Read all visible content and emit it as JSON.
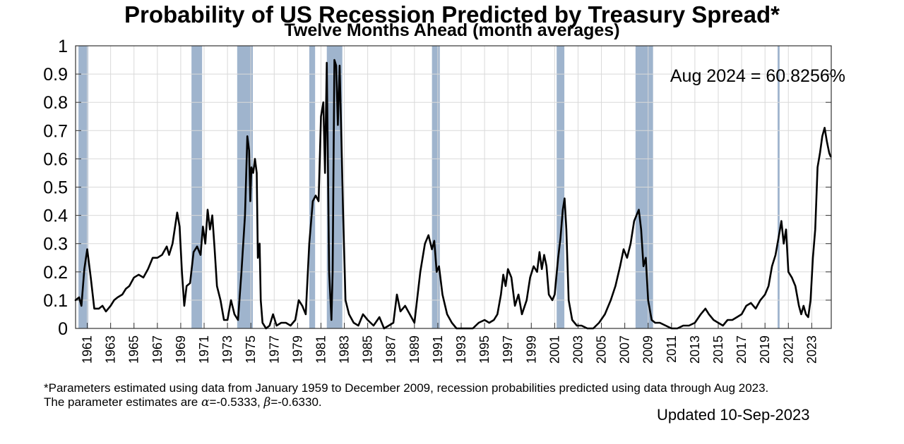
{
  "header": {
    "title": "Probability of US Recession Predicted by Treasury Spread*",
    "subtitle": "Twelve Months Ahead (month averages)"
  },
  "footnote": {
    "line1": "*Parameters estimated using data from January 1959 to December 2009, recession probabilities predicted using data through Aug 2023.",
    "line2_prefix": "The parameter estimates are ",
    "alpha_symbol": "α",
    "alpha_value": "=-0.5333, ",
    "beta_symbol": "β",
    "beta_value": "=-0.6330."
  },
  "updated": "Updated 10-Sep-2023",
  "colors": {
    "recession_band": "#9fb4cd",
    "line": "#000000",
    "grid": "#d9d9d9"
  },
  "chart_data": {
    "type": "line",
    "title": "Probability of US Recession Predicted by Treasury Spread*",
    "subtitle": "Twelve Months Ahead (month averages)",
    "annotation": "Aug 2024 = 60.8256%",
    "xlim": [
      1960.0,
      2024.67
    ],
    "ylim": [
      0,
      1
    ],
    "grid": true,
    "x_ticks": [
      1961,
      1963,
      1965,
      1967,
      1969,
      1971,
      1973,
      1975,
      1977,
      1979,
      1981,
      1983,
      1985,
      1987,
      1989,
      1991,
      1993,
      1995,
      1997,
      1999,
      2001,
      2003,
      2005,
      2007,
      2009,
      2011,
      2013,
      2015,
      2017,
      2019,
      2021,
      2023
    ],
    "y_ticks": [
      0,
      0.1,
      0.2,
      0.3,
      0.4,
      0.5,
      0.6,
      0.7,
      0.8,
      0.9,
      1
    ],
    "y_tick_labels": [
      "0",
      "0.1",
      "0.2",
      "0.3",
      "0.4",
      "0.5",
      "0.6",
      "0.7",
      "0.8",
      "0.9",
      "1"
    ],
    "recessions": [
      [
        1960.25,
        1961.08
      ],
      [
        1969.92,
        1970.83
      ],
      [
        1973.83,
        1975.17
      ],
      [
        1980.0,
        1980.5
      ],
      [
        1981.5,
        1982.83
      ],
      [
        1990.5,
        1991.17
      ],
      [
        2001.17,
        2001.83
      ],
      [
        2007.92,
        2009.42
      ],
      [
        2020.08,
        2020.25
      ]
    ],
    "series": [
      {
        "points": [
          [
            1960.0,
            0.1
          ],
          [
            1960.3,
            0.11
          ],
          [
            1960.5,
            0.08
          ],
          [
            1960.75,
            0.21
          ],
          [
            1961.0,
            0.28
          ],
          [
            1961.3,
            0.18
          ],
          [
            1961.6,
            0.07
          ],
          [
            1962.0,
            0.07
          ],
          [
            1962.3,
            0.08
          ],
          [
            1962.6,
            0.06
          ],
          [
            1963.0,
            0.08
          ],
          [
            1963.3,
            0.1
          ],
          [
            1963.6,
            0.11
          ],
          [
            1964.0,
            0.12
          ],
          [
            1964.3,
            0.14
          ],
          [
            1964.6,
            0.15
          ],
          [
            1965.0,
            0.18
          ],
          [
            1965.4,
            0.19
          ],
          [
            1965.8,
            0.18
          ],
          [
            1966.2,
            0.21
          ],
          [
            1966.6,
            0.25
          ],
          [
            1967.0,
            0.25
          ],
          [
            1967.4,
            0.26
          ],
          [
            1967.8,
            0.29
          ],
          [
            1968.0,
            0.26
          ],
          [
            1968.3,
            0.3
          ],
          [
            1968.7,
            0.41
          ],
          [
            1968.9,
            0.36
          ],
          [
            1969.1,
            0.2
          ],
          [
            1969.3,
            0.08
          ],
          [
            1969.5,
            0.15
          ],
          [
            1969.8,
            0.16
          ],
          [
            1970.1,
            0.27
          ],
          [
            1970.4,
            0.29
          ],
          [
            1970.7,
            0.26
          ],
          [
            1970.9,
            0.36
          ],
          [
            1971.1,
            0.3
          ],
          [
            1971.3,
            0.42
          ],
          [
            1971.5,
            0.35
          ],
          [
            1971.7,
            0.4
          ],
          [
            1971.9,
            0.28
          ],
          [
            1972.1,
            0.15
          ],
          [
            1972.4,
            0.1
          ],
          [
            1972.7,
            0.03
          ],
          [
            1973.0,
            0.03
          ],
          [
            1973.3,
            0.1
          ],
          [
            1973.6,
            0.05
          ],
          [
            1973.9,
            0.03
          ],
          [
            1974.2,
            0.2
          ],
          [
            1974.5,
            0.4
          ],
          [
            1974.7,
            0.68
          ],
          [
            1974.85,
            0.63
          ],
          [
            1974.95,
            0.45
          ],
          [
            1975.05,
            0.57
          ],
          [
            1975.2,
            0.55
          ],
          [
            1975.35,
            0.6
          ],
          [
            1975.5,
            0.55
          ],
          [
            1975.6,
            0.25
          ],
          [
            1975.75,
            0.3
          ],
          [
            1975.85,
            0.1
          ],
          [
            1976.0,
            0.02
          ],
          [
            1976.3,
            0.0
          ],
          [
            1976.6,
            0.01
          ],
          [
            1976.9,
            0.05
          ],
          [
            1977.2,
            0.01
          ],
          [
            1977.6,
            0.02
          ],
          [
            1978.0,
            0.02
          ],
          [
            1978.4,
            0.01
          ],
          [
            1978.8,
            0.03
          ],
          [
            1979.1,
            0.1
          ],
          [
            1979.4,
            0.08
          ],
          [
            1979.7,
            0.05
          ],
          [
            1980.0,
            0.3
          ],
          [
            1980.3,
            0.45
          ],
          [
            1980.55,
            0.47
          ],
          [
            1980.8,
            0.45
          ],
          [
            1981.0,
            0.75
          ],
          [
            1981.2,
            0.8
          ],
          [
            1981.35,
            0.55
          ],
          [
            1981.5,
            0.94
          ],
          [
            1981.7,
            0.2
          ],
          [
            1981.9,
            0.03
          ],
          [
            1982.0,
            0.2
          ],
          [
            1982.15,
            0.95
          ],
          [
            1982.3,
            0.93
          ],
          [
            1982.45,
            0.72
          ],
          [
            1982.6,
            0.93
          ],
          [
            1982.75,
            0.67
          ],
          [
            1982.9,
            0.4
          ],
          [
            1983.1,
            0.1
          ],
          [
            1983.4,
            0.05
          ],
          [
            1983.8,
            0.02
          ],
          [
            1984.2,
            0.01
          ],
          [
            1984.6,
            0.05
          ],
          [
            1985.0,
            0.03
          ],
          [
            1985.5,
            0.01
          ],
          [
            1986.0,
            0.04
          ],
          [
            1986.4,
            0.0
          ],
          [
            1986.8,
            0.01
          ],
          [
            1987.2,
            0.02
          ],
          [
            1987.5,
            0.12
          ],
          [
            1987.8,
            0.06
          ],
          [
            1988.2,
            0.08
          ],
          [
            1988.6,
            0.05
          ],
          [
            1989.0,
            0.02
          ],
          [
            1989.5,
            0.2
          ],
          [
            1989.9,
            0.3
          ],
          [
            1990.2,
            0.33
          ],
          [
            1990.5,
            0.28
          ],
          [
            1990.7,
            0.31
          ],
          [
            1990.9,
            0.2
          ],
          [
            1991.1,
            0.22
          ],
          [
            1991.4,
            0.12
          ],
          [
            1991.8,
            0.05
          ],
          [
            1992.2,
            0.02
          ],
          [
            1992.6,
            0.0
          ],
          [
            1993.0,
            0.0
          ],
          [
            1993.5,
            0.0
          ],
          [
            1994.0,
            0.0
          ],
          [
            1994.5,
            0.02
          ],
          [
            1995.0,
            0.03
          ],
          [
            1995.4,
            0.02
          ],
          [
            1995.8,
            0.03
          ],
          [
            1996.1,
            0.05
          ],
          [
            1996.4,
            0.12
          ],
          [
            1996.6,
            0.19
          ],
          [
            1996.8,
            0.15
          ],
          [
            1997.0,
            0.21
          ],
          [
            1997.3,
            0.18
          ],
          [
            1997.6,
            0.08
          ],
          [
            1997.9,
            0.12
          ],
          [
            1998.2,
            0.05
          ],
          [
            1998.6,
            0.1
          ],
          [
            1998.9,
            0.18
          ],
          [
            1999.2,
            0.22
          ],
          [
            1999.5,
            0.2
          ],
          [
            1999.7,
            0.27
          ],
          [
            1999.9,
            0.21
          ],
          [
            2000.1,
            0.26
          ],
          [
            2000.3,
            0.22
          ],
          [
            2000.5,
            0.12
          ],
          [
            2000.8,
            0.1
          ],
          [
            2001.0,
            0.12
          ],
          [
            2001.3,
            0.25
          ],
          [
            2001.5,
            0.32
          ],
          [
            2001.7,
            0.42
          ],
          [
            2001.85,
            0.46
          ],
          [
            2002.0,
            0.35
          ],
          [
            2002.2,
            0.1
          ],
          [
            2002.5,
            0.03
          ],
          [
            2002.9,
            0.01
          ],
          [
            2003.3,
            0.01
          ],
          [
            2003.8,
            0.0
          ],
          [
            2004.3,
            0.0
          ],
          [
            2004.8,
            0.02
          ],
          [
            2005.3,
            0.05
          ],
          [
            2005.8,
            0.1
          ],
          [
            2006.2,
            0.15
          ],
          [
            2006.6,
            0.22
          ],
          [
            2006.9,
            0.28
          ],
          [
            2007.2,
            0.25
          ],
          [
            2007.5,
            0.3
          ],
          [
            2007.8,
            0.38
          ],
          [
            2008.0,
            0.4
          ],
          [
            2008.2,
            0.42
          ],
          [
            2008.4,
            0.35
          ],
          [
            2008.6,
            0.22
          ],
          [
            2008.8,
            0.25
          ],
          [
            2009.0,
            0.1
          ],
          [
            2009.3,
            0.03
          ],
          [
            2009.6,
            0.02
          ],
          [
            2010.0,
            0.02
          ],
          [
            2010.5,
            0.01
          ],
          [
            2011.0,
            0.0
          ],
          [
            2011.5,
            0.0
          ],
          [
            2012.0,
            0.01
          ],
          [
            2012.5,
            0.01
          ],
          [
            2013.0,
            0.02
          ],
          [
            2013.5,
            0.05
          ],
          [
            2013.9,
            0.07
          ],
          [
            2014.2,
            0.05
          ],
          [
            2014.6,
            0.03
          ],
          [
            2015.0,
            0.02
          ],
          [
            2015.4,
            0.01
          ],
          [
            2015.8,
            0.03
          ],
          [
            2016.2,
            0.03
          ],
          [
            2016.6,
            0.04
          ],
          [
            2017.0,
            0.05
          ],
          [
            2017.4,
            0.08
          ],
          [
            2017.8,
            0.09
          ],
          [
            2018.2,
            0.07
          ],
          [
            2018.6,
            0.1
          ],
          [
            2019.0,
            0.12
          ],
          [
            2019.3,
            0.15
          ],
          [
            2019.6,
            0.22
          ],
          [
            2019.9,
            0.26
          ],
          [
            2020.2,
            0.33
          ],
          [
            2020.4,
            0.38
          ],
          [
            2020.6,
            0.3
          ],
          [
            2020.8,
            0.35
          ],
          [
            2021.0,
            0.2
          ],
          [
            2021.3,
            0.18
          ],
          [
            2021.6,
            0.15
          ],
          [
            2021.9,
            0.08
          ],
          [
            2022.1,
            0.05
          ],
          [
            2022.3,
            0.08
          ],
          [
            2022.5,
            0.05
          ],
          [
            2022.7,
            0.04
          ],
          [
            2022.9,
            0.1
          ],
          [
            2023.1,
            0.25
          ],
          [
            2023.3,
            0.35
          ],
          [
            2023.5,
            0.57
          ],
          [
            2023.7,
            0.62
          ],
          [
            2023.9,
            0.68
          ],
          [
            2024.1,
            0.71
          ],
          [
            2024.3,
            0.66
          ],
          [
            2024.5,
            0.62
          ],
          [
            2024.62,
            0.608
          ]
        ]
      }
    ]
  }
}
